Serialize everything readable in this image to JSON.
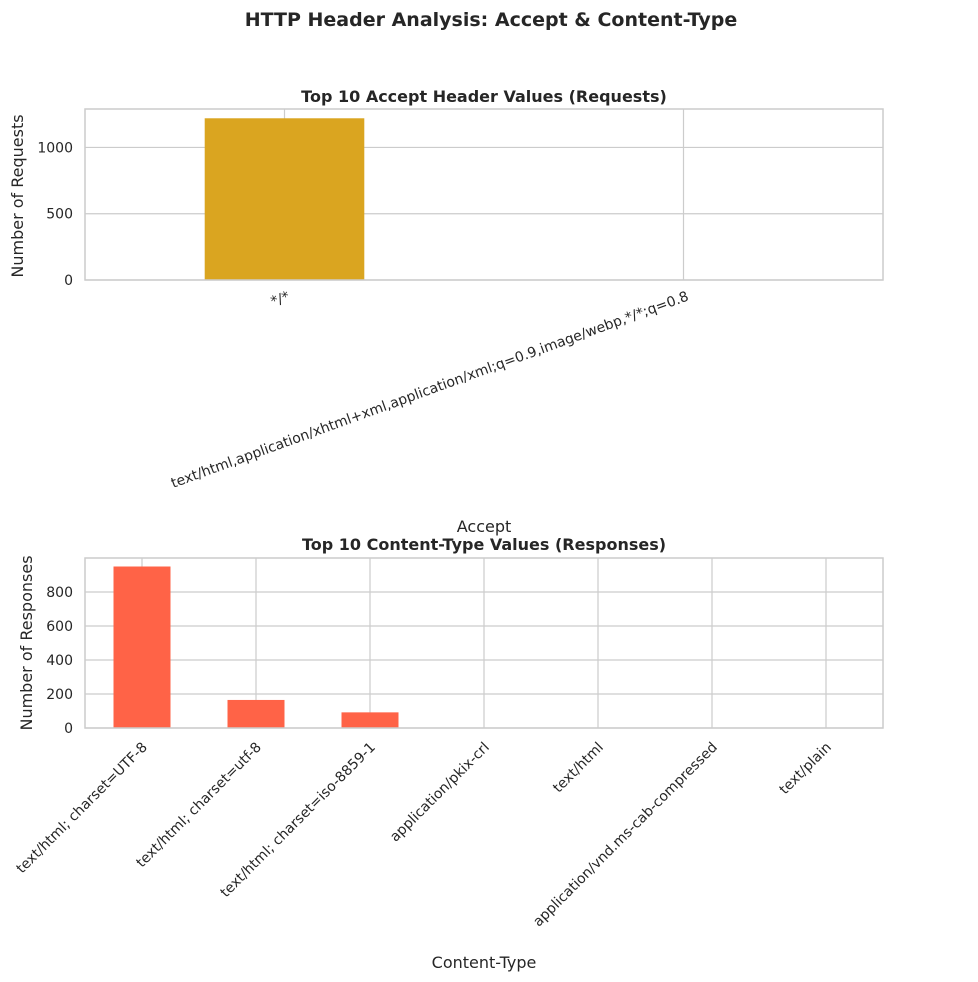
{
  "figure": {
    "suptitle": "HTTP Header Analysis: Accept & Content-Type"
  },
  "chart_data": [
    {
      "type": "bar",
      "title": "Top 10 Accept Header Values (Requests)",
      "xlabel": "Accept",
      "ylabel": "Number of Requests",
      "categories": [
        "*/*",
        "text/html,application/xhtml+xml,application/xml;q=0.9,image/webp,*/*;q=0.8"
      ],
      "values": [
        1220,
        0
      ],
      "ylim": [
        0,
        1290
      ],
      "yticks": [
        0,
        500,
        1000
      ],
      "color": "#DAA520",
      "tick_rotation": 20,
      "grid": true
    },
    {
      "type": "bar",
      "title": "Top 10 Content-Type Values (Responses)",
      "xlabel": "Content-Type",
      "ylabel": "Number of Responses",
      "categories": [
        "text/html; charset=UTF-8",
        "text/html; charset=utf-8",
        "text/html; charset=iso-8859-1",
        "application/pkix-crl",
        "text/html",
        "application/vnd.ms-cab-compressed",
        "text/plain"
      ],
      "values": [
        950,
        165,
        92,
        2,
        1,
        1,
        1
      ],
      "ylim": [
        0,
        1000
      ],
      "yticks": [
        0,
        200,
        400,
        600,
        800
      ],
      "color": "#FF6347",
      "tick_rotation": 45,
      "grid": true
    }
  ]
}
